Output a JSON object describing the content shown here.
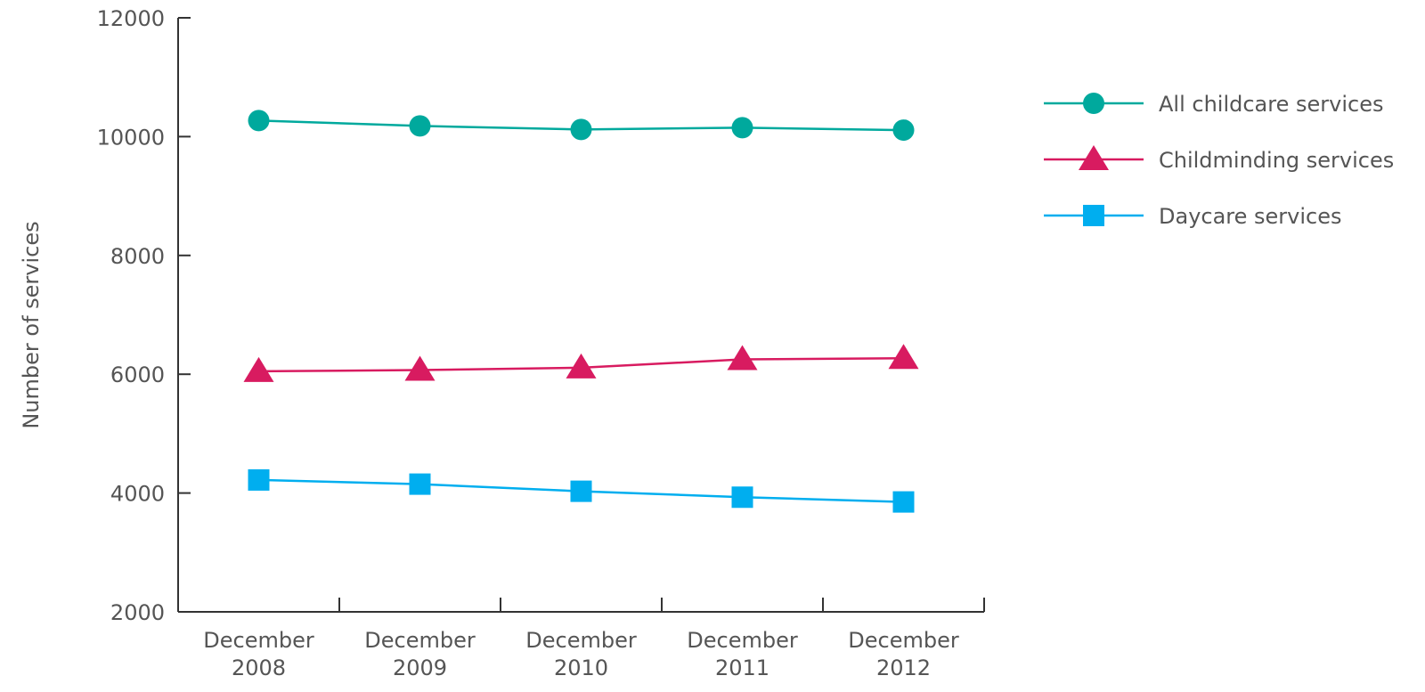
{
  "chart_data": {
    "type": "line",
    "title": "",
    "xlabel": "",
    "ylabel": "Number of services",
    "ylim": [
      2000,
      12000
    ],
    "yticks": [
      2000,
      4000,
      6000,
      8000,
      10000,
      12000
    ],
    "grid": false,
    "legend_position": "top-right",
    "categories": [
      [
        "December",
        "2008"
      ],
      [
        "December",
        "2009"
      ],
      [
        "December",
        "2010"
      ],
      [
        "December",
        "2011"
      ],
      [
        "December",
        "2012"
      ]
    ],
    "series": [
      {
        "name": "All childcare services",
        "color": "#00a99d",
        "marker": "circle",
        "values": [
          10270,
          10180,
          10120,
          10150,
          10110
        ]
      },
      {
        "name": "Childminding services",
        "color": "#d81b60",
        "marker": "triangle",
        "values": [
          6050,
          6070,
          6110,
          6250,
          6270
        ]
      },
      {
        "name": "Daycare services",
        "color": "#00aeef",
        "marker": "square",
        "values": [
          4220,
          4150,
          4030,
          3930,
          3850
        ]
      }
    ]
  }
}
